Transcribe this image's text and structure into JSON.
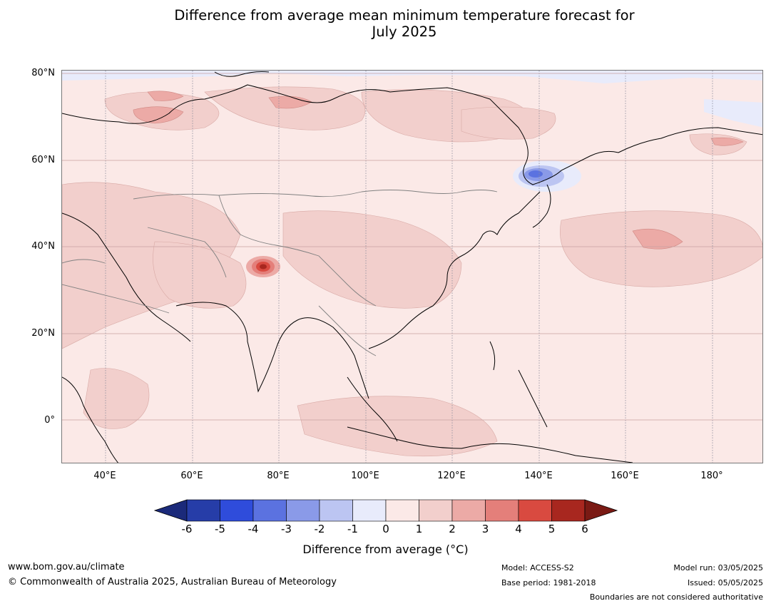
{
  "title_line1": "Difference from average mean minimum temperature forecast for",
  "title_line2": "July 2025",
  "lat_labels": [
    "80°N",
    "60°N",
    "40°N",
    "20°N",
    "0°"
  ],
  "lon_labels": [
    "40°E",
    "60°E",
    "80°E",
    "100°E",
    "120°E",
    "140°E",
    "160°E",
    "180°"
  ],
  "colorbar": {
    "ticks": [
      "-6",
      "-5",
      "-4",
      "-3",
      "-2",
      "-1",
      "0",
      "1",
      "2",
      "3",
      "4",
      "5",
      "6"
    ],
    "colors": [
      "#1b2a7a",
      "#263da8",
      "#2f4cdb",
      "#5b72e0",
      "#8a9ae8",
      "#bcc5f2",
      "#e8ebfb",
      "#fbe9e7",
      "#f2cfcc",
      "#ecaaa6",
      "#e47f7a",
      "#d94a40",
      "#a8271f",
      "#7a1a14"
    ],
    "title": "Difference from average (°C)"
  },
  "footer": {
    "url": "www.bom.gov.au/climate",
    "copyright": "© Commonwealth of Australia 2025, Australian Bureau of Meteorology",
    "model": "Model: ACCESS-S2",
    "base_period": "Base period: 1981-2018",
    "model_run": "Model run: 03/05/2025",
    "issued": "Issued: 05/05/2025",
    "disclaimer": "Boundaries are not considered authoritative"
  }
}
